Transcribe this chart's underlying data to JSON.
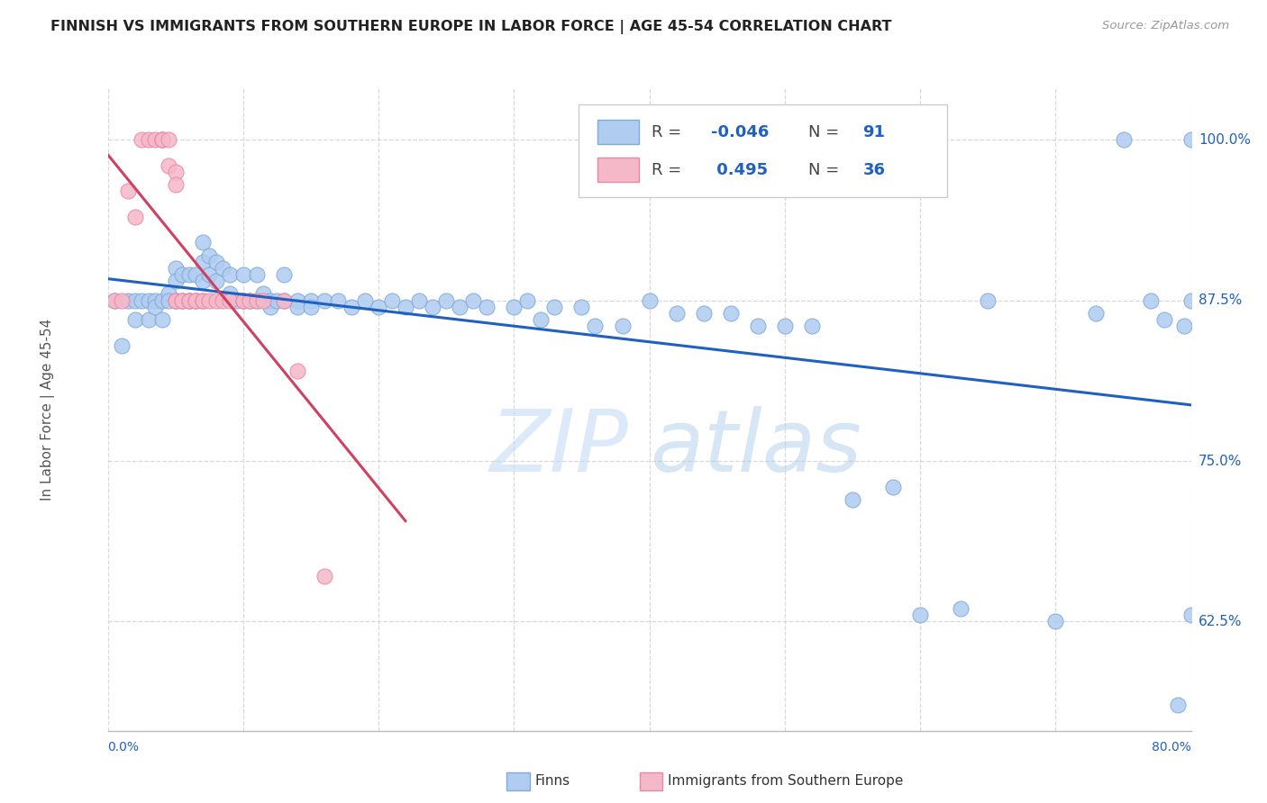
{
  "title": "FINNISH VS IMMIGRANTS FROM SOUTHERN EUROPE IN LABOR FORCE | AGE 45-54 CORRELATION CHART",
  "source": "Source: ZipAtlas.com",
  "ylabel": "In Labor Force | Age 45-54",
  "ytick_labels": [
    "62.5%",
    "75.0%",
    "87.5%",
    "100.0%"
  ],
  "ytick_values": [
    0.625,
    0.75,
    0.875,
    1.0
  ],
  "xtick_values": [
    0.0,
    0.1,
    0.2,
    0.3,
    0.4,
    0.5,
    0.6,
    0.7,
    0.8
  ],
  "xmin": 0.0,
  "xmax": 0.8,
  "ymin": 0.54,
  "ymax": 1.04,
  "finns_color": "#b0ccf0",
  "immigrants_color": "#f5b8c8",
  "finns_edge": "#80aad8",
  "immigrants_edge": "#e888a8",
  "trend_finns_color": "#2060c0",
  "trend_immigrants_color": "#d04060",
  "R_finns": -0.046,
  "N_finns": 91,
  "R_immigrants": 0.495,
  "N_immigrants": 36,
  "watermark_zip": "ZIP",
  "watermark_atlas": "atlas",
  "background_color": "#ffffff",
  "grid_color": "#d8d8d8",
  "finns_x": [
    0.005,
    0.01,
    0.015,
    0.02,
    0.02,
    0.025,
    0.03,
    0.03,
    0.035,
    0.035,
    0.04,
    0.04,
    0.045,
    0.045,
    0.05,
    0.05,
    0.05,
    0.055,
    0.055,
    0.06,
    0.06,
    0.065,
    0.065,
    0.07,
    0.07,
    0.07,
    0.075,
    0.075,
    0.08,
    0.08,
    0.085,
    0.09,
    0.09,
    0.095,
    0.1,
    0.1,
    0.105,
    0.11,
    0.11,
    0.115,
    0.12,
    0.12,
    0.125,
    0.13,
    0.13,
    0.14,
    0.14,
    0.15,
    0.15,
    0.16,
    0.17,
    0.18,
    0.19,
    0.2,
    0.21,
    0.22,
    0.23,
    0.24,
    0.25,
    0.26,
    0.27,
    0.28,
    0.3,
    0.31,
    0.32,
    0.33,
    0.35,
    0.36,
    0.38,
    0.4,
    0.42,
    0.44,
    0.46,
    0.48,
    0.5,
    0.52,
    0.55,
    0.58,
    0.6,
    0.63,
    0.65,
    0.7,
    0.73,
    0.75,
    0.77,
    0.78,
    0.79,
    0.795,
    0.8,
    0.8,
    0.8
  ],
  "finns_y": [
    0.875,
    0.84,
    0.875,
    0.875,
    0.86,
    0.875,
    0.875,
    0.86,
    0.875,
    0.87,
    0.875,
    0.86,
    0.88,
    0.875,
    0.9,
    0.89,
    0.875,
    0.895,
    0.875,
    0.895,
    0.875,
    0.895,
    0.875,
    0.92,
    0.905,
    0.89,
    0.91,
    0.895,
    0.905,
    0.89,
    0.9,
    0.895,
    0.88,
    0.875,
    0.895,
    0.875,
    0.875,
    0.895,
    0.875,
    0.88,
    0.875,
    0.87,
    0.875,
    0.895,
    0.875,
    0.875,
    0.87,
    0.875,
    0.87,
    0.875,
    0.875,
    0.87,
    0.875,
    0.87,
    0.875,
    0.87,
    0.875,
    0.87,
    0.875,
    0.87,
    0.875,
    0.87,
    0.87,
    0.875,
    0.86,
    0.87,
    0.87,
    0.855,
    0.855,
    0.875,
    0.865,
    0.865,
    0.865,
    0.855,
    0.855,
    0.855,
    0.72,
    0.73,
    0.63,
    0.635,
    0.875,
    0.625,
    0.865,
    1.0,
    0.875,
    0.86,
    0.56,
    0.855,
    1.0,
    0.875,
    0.63
  ],
  "immigrants_x": [
    0.005,
    0.01,
    0.015,
    0.02,
    0.025,
    0.03,
    0.035,
    0.04,
    0.04,
    0.04,
    0.045,
    0.045,
    0.05,
    0.05,
    0.05,
    0.05,
    0.055,
    0.055,
    0.06,
    0.06,
    0.065,
    0.065,
    0.07,
    0.07,
    0.075,
    0.08,
    0.085,
    0.09,
    0.1,
    0.1,
    0.105,
    0.11,
    0.115,
    0.13,
    0.14,
    0.16
  ],
  "immigrants_y": [
    0.875,
    0.875,
    0.96,
    0.94,
    1.0,
    1.0,
    1.0,
    1.0,
    1.0,
    1.0,
    1.0,
    0.98,
    0.975,
    0.965,
    0.875,
    0.875,
    0.875,
    0.875,
    0.875,
    0.875,
    0.875,
    0.875,
    0.875,
    0.875,
    0.875,
    0.875,
    0.875,
    0.875,
    0.875,
    0.875,
    0.875,
    0.875,
    0.875,
    0.875,
    0.82,
    0.66
  ]
}
